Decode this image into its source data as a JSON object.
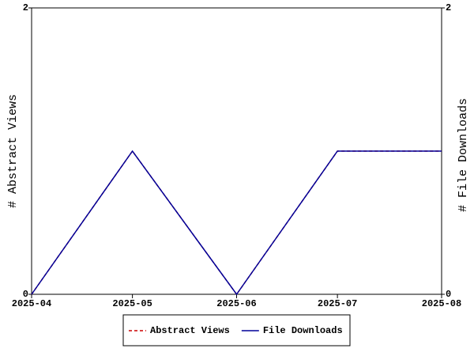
{
  "chart_data": {
    "type": "line",
    "x": [
      "2025-04",
      "2025-05",
      "2025-06",
      "2025-07",
      "2025-08"
    ],
    "series": [
      {
        "name": "Abstract Views",
        "color": "#cc0000",
        "dash": true,
        "values": [
          0,
          1,
          0,
          1,
          1
        ]
      },
      {
        "name": "File Downloads",
        "color": "#000099",
        "axis": "y2",
        "values": [
          0,
          1,
          0,
          1,
          1
        ]
      }
    ],
    "ylabel": "# Abstract Views",
    "y2label": "# File Downloads",
    "ylim": [
      0,
      2
    ],
    "yticks": [
      0,
      2
    ],
    "y2lim": [
      0,
      2
    ],
    "y2ticks": [
      0,
      2
    ],
    "legend": "bottom"
  }
}
